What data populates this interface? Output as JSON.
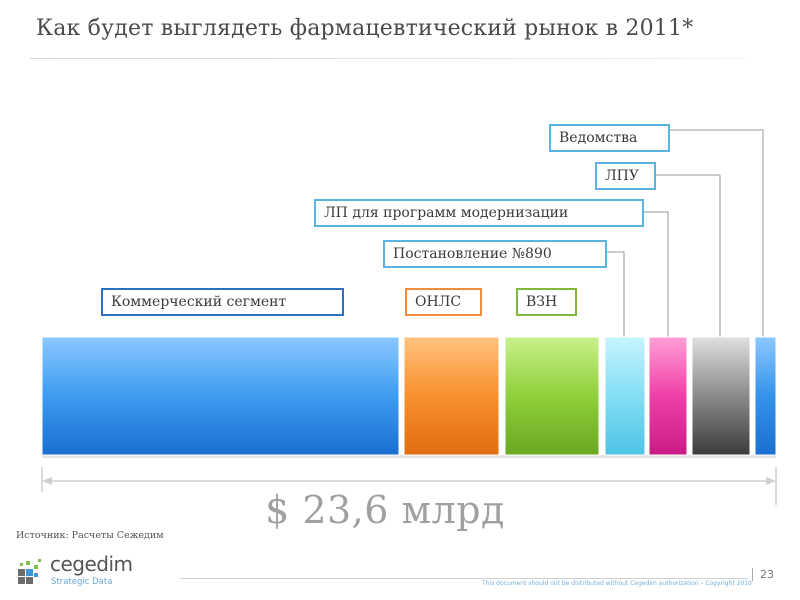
{
  "title": "Как будет выглядеть фармацевтический  рынок  в 2011*",
  "labels": {
    "vedomstva": "Ведомства",
    "lpu": "ЛПУ",
    "lp_modernization": "ЛП для программ модернизации",
    "postanovlenie": "Постановление №890",
    "kommercheskiy": "Коммерческий сегмент",
    "onls": "ОНЛС",
    "vzn": "ВЗН"
  },
  "total": "$ 23,6 млрд",
  "source": "Источник: Расчеты Сежедим",
  "brand": {
    "name": "cegedim",
    "tagline": "Strategic Data"
  },
  "footer": {
    "copyright": "This document should not be distributed without Cegedim authorization – Copyright 2010",
    "page_number": "23"
  },
  "colors": {
    "kommercheskiy": "#2f8fe8",
    "onls": "#f58a28",
    "vzn": "#88c936",
    "postanovlenie": "#7fdcf2",
    "lp_modernization": "#f03ca8",
    "lpu": "#8a8a8a",
    "vedomstva": "#2b8ee0"
  }
}
